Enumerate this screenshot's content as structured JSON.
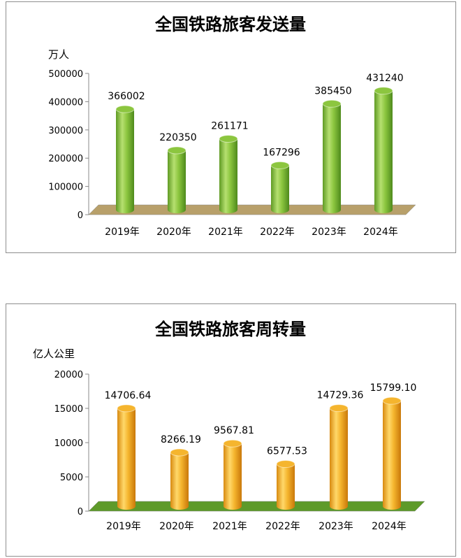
{
  "chart_data": [
    {
      "type": "bar",
      "title": "全国铁路旅客发送量",
      "ylabel": "万人",
      "xlabel": "",
      "categories": [
        "2019年",
        "2020年",
        "2021年",
        "2022年",
        "2023年",
        "2024年"
      ],
      "values": [
        366002,
        220350,
        261171,
        167296,
        385450,
        431240
      ],
      "value_labels": [
        "366002",
        "220350",
        "261171",
        "167296",
        "385450",
        "431240"
      ],
      "yticks": [
        "0",
        "100000",
        "200000",
        "300000",
        "400000",
        "500000"
      ],
      "ylim": [
        0,
        500000
      ],
      "bar_color": "#8cc63f",
      "floor_color": "#b8a06a",
      "grid": false,
      "legend": "none"
    },
    {
      "type": "bar",
      "title": "全国铁路旅客周转量",
      "ylabel": "亿人公里",
      "xlabel": "",
      "categories": [
        "2019年",
        "2020年",
        "2021年",
        "2022年",
        "2023年",
        "2024年"
      ],
      "values": [
        14706.64,
        8266.19,
        9567.81,
        6577.53,
        14729.36,
        15799.1
      ],
      "value_labels": [
        "14706.64",
        "8266.19",
        "9567.81",
        "6577.53",
        "14729.36",
        "15799.10"
      ],
      "yticks": [
        "0",
        "5000",
        "10000",
        "15000",
        "20000"
      ],
      "ylim": [
        0,
        20000
      ],
      "bar_color": "#f5b52e",
      "floor_color": "#5e9a2a",
      "grid": false,
      "legend": "none"
    }
  ]
}
